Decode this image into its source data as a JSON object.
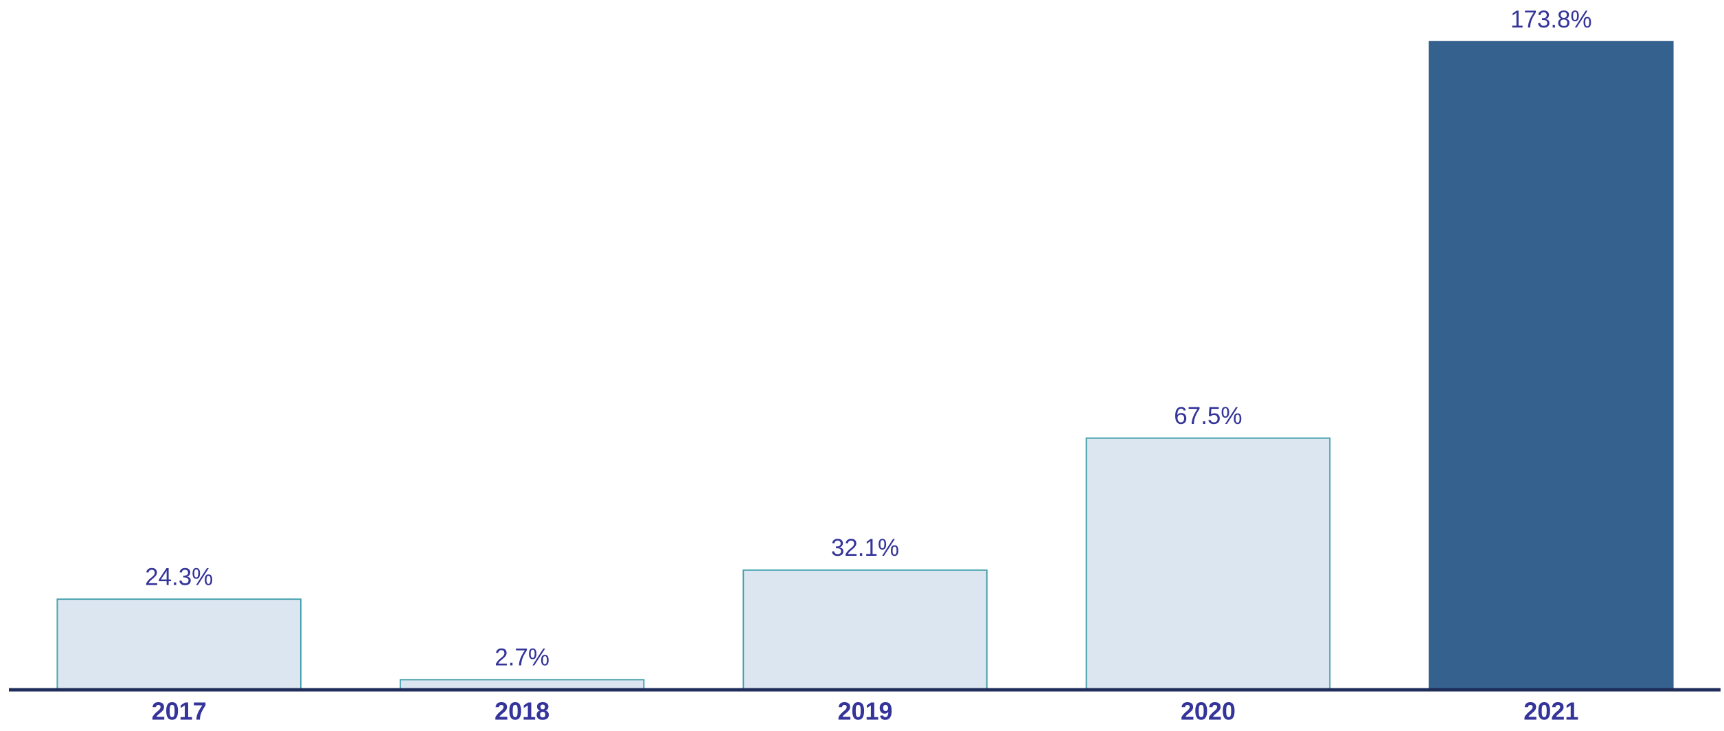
{
  "chart_data": {
    "type": "bar",
    "categories": [
      "2017",
      "2018",
      "2019",
      "2020",
      "2021"
    ],
    "values": [
      24.3,
      2.7,
      32.1,
      67.5,
      173.8
    ],
    "value_labels": [
      "24.3%",
      "2.7%",
      "32.1%",
      "67.5%",
      "173.8%"
    ],
    "colors": [
      "#dce6f1",
      "#dce6f1",
      "#dce6f1",
      "#dce6f1",
      "#35618f"
    ],
    "edgecolors": [
      "#4aa3ae",
      "#4aa3ae",
      "#4aa3ae",
      "#4aa3ae",
      "#35618f"
    ],
    "ylim": [
      0,
      185
    ]
  }
}
